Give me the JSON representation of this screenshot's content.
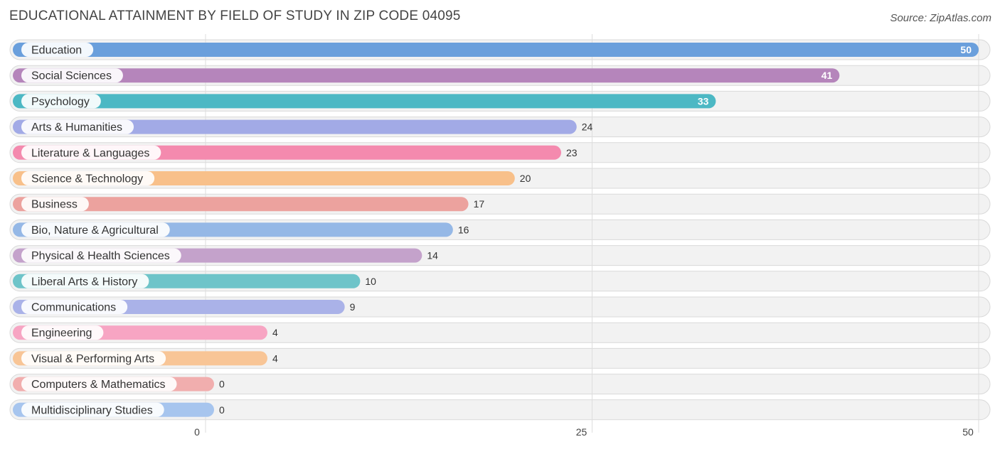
{
  "header": {
    "title": "EDUCATIONAL ATTAINMENT BY FIELD OF STUDY IN ZIP CODE 04095",
    "source": "Source: ZipAtlas.com"
  },
  "chart_data": {
    "type": "bar",
    "orientation": "horizontal",
    "title": "EDUCATIONAL ATTAINMENT BY FIELD OF STUDY IN ZIP CODE 04095",
    "xlabel": "",
    "ylabel": "",
    "xlim": [
      0,
      50
    ],
    "xticks": [
      0,
      25,
      50
    ],
    "grid": true,
    "categories": [
      "Education",
      "Social Sciences",
      "Psychology",
      "Arts & Humanities",
      "Literature & Languages",
      "Science & Technology",
      "Business",
      "Bio, Nature & Agricultural",
      "Physical & Health Sciences",
      "Liberal Arts & History",
      "Communications",
      "Engineering",
      "Visual & Performing Arts",
      "Computers & Mathematics",
      "Multidisciplinary Studies"
    ],
    "values": [
      50,
      41,
      33,
      24,
      23,
      20,
      17,
      16,
      14,
      10,
      9,
      4,
      4,
      0,
      0
    ],
    "colors": [
      "#6a9fdc",
      "#b585bb",
      "#4cb8c4",
      "#a2aae6",
      "#f48aae",
      "#f8c08a",
      "#eca29e",
      "#95b8e6",
      "#c4a2cb",
      "#6ec4c9",
      "#aab2e8",
      "#f7a5c3",
      "#f8c596",
      "#f1aeae",
      "#a7c5ee"
    ]
  }
}
